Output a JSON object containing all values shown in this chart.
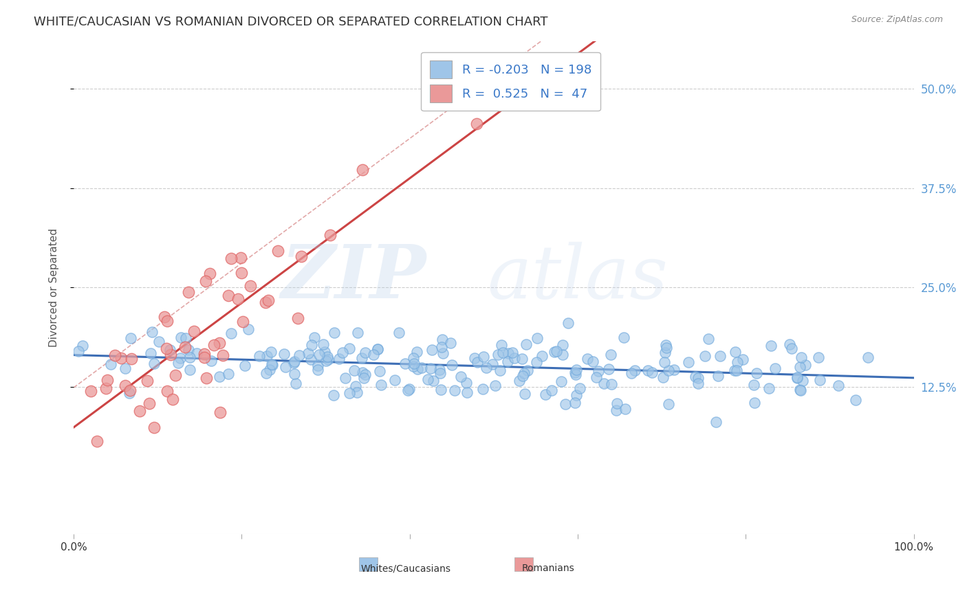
{
  "title": "WHITE/CAUCASIAN VS ROMANIAN DIVORCED OR SEPARATED CORRELATION CHART",
  "source": "Source: ZipAtlas.com",
  "ylabel": "Divorced or Separated",
  "legend_white_r": "-0.203",
  "legend_white_n": "198",
  "legend_romanian_r": "0.525",
  "legend_romanian_n": "47",
  "ytick_labels": [
    "12.5%",
    "25.0%",
    "37.5%",
    "50.0%"
  ],
  "ytick_values": [
    0.125,
    0.25,
    0.375,
    0.5
  ],
  "xrange": [
    0.0,
    1.0
  ],
  "yrange": [
    -0.06,
    0.56
  ],
  "blue_scatter_color": "#9fc5e8",
  "blue_scatter_edge": "#6fa8dc",
  "pink_scatter_color": "#ea9999",
  "pink_scatter_edge": "#e06666",
  "pink_line_color": "#cc4444",
  "blue_line_color": "#3d6eb5",
  "dashed_line_color": "#dd9999",
  "background_color": "#ffffff",
  "grid_color": "#cccccc",
  "title_fontsize": 13,
  "axis_label_fontsize": 11,
  "tick_fontsize": 11,
  "legend_fontsize": 13,
  "right_tick_color": "#5b9bd5"
}
